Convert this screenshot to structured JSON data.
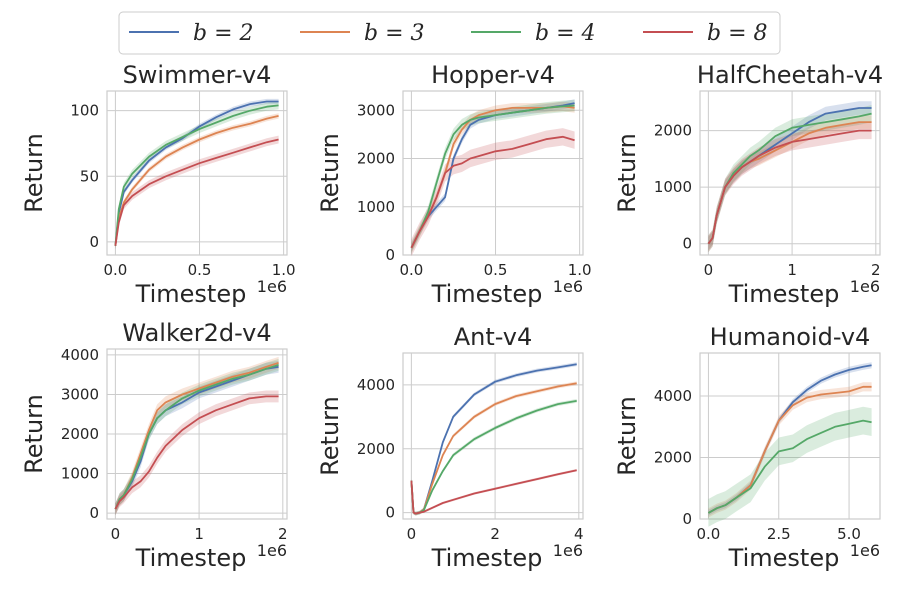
{
  "colors": {
    "b = 2": "#4c72b0",
    "b = 3": "#dd8452",
    "b = 4": "#55a868",
    "b = 8": "#c44e52"
  },
  "legend": {
    "placement": "top-center",
    "entries": [
      "b = 2",
      "b = 3",
      "b = 4",
      "b = 8"
    ]
  },
  "chart_data": [
    {
      "type": "line",
      "title": "Swimmer-v4",
      "xlabel": "Timestep",
      "xscale_label": "1e6",
      "ylabel": "Return",
      "grid": true,
      "xlim": [
        -0.05,
        1.02
      ],
      "ylim": [
        -10,
        115
      ],
      "xticks": [
        0.0,
        0.5,
        1.0
      ],
      "xtick_labels": [
        "0.0",
        "0.5",
        "1.0"
      ],
      "yticks": [
        0,
        50,
        100
      ],
      "ytick_labels": [
        "0",
        "50",
        "100"
      ],
      "series": [
        {
          "name": "b = 2",
          "x": [
            0,
            0.02,
            0.05,
            0.1,
            0.2,
            0.3,
            0.4,
            0.5,
            0.6,
            0.7,
            0.8,
            0.9,
            0.97
          ],
          "y": [
            -3,
            22,
            38,
            47,
            62,
            72,
            79,
            88,
            95,
            101,
            105,
            107,
            107
          ],
          "band": 2
        },
        {
          "name": "b = 3",
          "x": [
            0,
            0.02,
            0.05,
            0.1,
            0.2,
            0.3,
            0.4,
            0.5,
            0.6,
            0.7,
            0.8,
            0.9,
            0.97
          ],
          "y": [
            -3,
            18,
            30,
            40,
            55,
            65,
            72,
            78,
            83,
            87,
            90,
            94,
            96
          ],
          "band": 2
        },
        {
          "name": "b = 4",
          "x": [
            0,
            0.02,
            0.05,
            0.1,
            0.2,
            0.3,
            0.4,
            0.5,
            0.6,
            0.7,
            0.8,
            0.9,
            0.97
          ],
          "y": [
            -3,
            25,
            42,
            52,
            65,
            74,
            80,
            86,
            91,
            96,
            100,
            103,
            104
          ],
          "band": 3
        },
        {
          "name": "b = 8",
          "x": [
            0,
            0.02,
            0.05,
            0.1,
            0.2,
            0.3,
            0.4,
            0.5,
            0.6,
            0.7,
            0.8,
            0.9,
            0.97
          ],
          "y": [
            -3,
            15,
            28,
            35,
            44,
            50,
            55,
            60,
            64,
            68,
            72,
            76,
            78
          ],
          "band": 3
        }
      ]
    },
    {
      "type": "line",
      "title": "Hopper-v4",
      "xlabel": "Timestep",
      "xscale_label": "1e6",
      "ylabel": "Return",
      "grid": true,
      "xlim": [
        -0.05,
        1.02
      ],
      "ylim": [
        0,
        3400
      ],
      "xticks": [
        0.0,
        0.5,
        1.0
      ],
      "xtick_labels": [
        "0.0",
        "0.5",
        "1.0"
      ],
      "yticks": [
        0,
        1000,
        2000,
        3000
      ],
      "ytick_labels": [
        "0",
        "1000",
        "2000",
        "3000"
      ],
      "series": [
        {
          "name": "b = 2",
          "x": [
            0,
            0.05,
            0.1,
            0.15,
            0.2,
            0.25,
            0.3,
            0.35,
            0.4,
            0.5,
            0.6,
            0.7,
            0.8,
            0.9,
            0.97
          ],
          "y": [
            150,
            500,
            800,
            1000,
            1200,
            2000,
            2400,
            2700,
            2800,
            2900,
            2950,
            3000,
            3050,
            3100,
            3150
          ],
          "band": 80
        },
        {
          "name": "b = 3",
          "x": [
            0,
            0.05,
            0.1,
            0.15,
            0.2,
            0.25,
            0.3,
            0.35,
            0.4,
            0.5,
            0.6,
            0.7,
            0.8,
            0.9,
            0.97
          ],
          "y": [
            150,
            500,
            800,
            1200,
            1700,
            2300,
            2600,
            2800,
            2900,
            3000,
            3050,
            3050,
            3050,
            3080,
            3050
          ],
          "band": 100
        },
        {
          "name": "b = 4",
          "x": [
            0,
            0.05,
            0.1,
            0.15,
            0.2,
            0.25,
            0.3,
            0.35,
            0.4,
            0.5,
            0.6,
            0.7,
            0.8,
            0.9,
            0.97
          ],
          "y": [
            150,
            500,
            900,
            1500,
            2100,
            2500,
            2700,
            2800,
            2850,
            2900,
            2950,
            3000,
            3050,
            3080,
            3100
          ],
          "band": 120
        },
        {
          "name": "b = 8",
          "x": [
            0,
            0.05,
            0.1,
            0.15,
            0.2,
            0.25,
            0.3,
            0.35,
            0.4,
            0.5,
            0.6,
            0.7,
            0.8,
            0.9,
            0.97
          ],
          "y": [
            150,
            500,
            800,
            1200,
            1700,
            1850,
            1900,
            2000,
            2050,
            2150,
            2200,
            2300,
            2400,
            2450,
            2380
          ],
          "band": 180
        }
      ]
    },
    {
      "type": "line",
      "title": "HalfCheetah-v4",
      "xlabel": "Timestep",
      "xscale_label": "1e6",
      "ylabel": "Return",
      "grid": true,
      "xlim": [
        -0.1,
        2.05
      ],
      "ylim": [
        -200,
        2700
      ],
      "xticks": [
        0,
        1,
        2
      ],
      "xtick_labels": [
        "0",
        "1",
        "2"
      ],
      "yticks": [
        0,
        1000,
        2000
      ],
      "ytick_labels": [
        "0",
        "1000",
        "2000"
      ],
      "series": [
        {
          "name": "b = 2",
          "x": [
            0,
            0.05,
            0.1,
            0.2,
            0.3,
            0.4,
            0.5,
            0.6,
            0.8,
            1.0,
            1.2,
            1.4,
            1.6,
            1.8,
            1.95
          ],
          "y": [
            0,
            100,
            500,
            1000,
            1200,
            1350,
            1450,
            1550,
            1750,
            1950,
            2150,
            2300,
            2350,
            2400,
            2400
          ],
          "band": 120
        },
        {
          "name": "b = 3",
          "x": [
            0,
            0.05,
            0.1,
            0.2,
            0.3,
            0.4,
            0.5,
            0.6,
            0.8,
            1.0,
            1.2,
            1.4,
            1.6,
            1.8,
            1.95
          ],
          "y": [
            0,
            100,
            500,
            1000,
            1200,
            1350,
            1450,
            1500,
            1650,
            1800,
            1950,
            2050,
            2100,
            2150,
            2150
          ],
          "band": 120
        },
        {
          "name": "b = 4",
          "x": [
            0,
            0.05,
            0.1,
            0.2,
            0.3,
            0.4,
            0.5,
            0.6,
            0.8,
            1.0,
            1.2,
            1.4,
            1.6,
            1.8,
            1.95
          ],
          "y": [
            0,
            100,
            500,
            1000,
            1250,
            1400,
            1550,
            1650,
            1900,
            2050,
            2100,
            2150,
            2200,
            2250,
            2300
          ],
          "band": 150
        },
        {
          "name": "b = 8",
          "x": [
            0,
            0.05,
            0.1,
            0.2,
            0.3,
            0.4,
            0.5,
            0.6,
            0.8,
            1.0,
            1.2,
            1.4,
            1.6,
            1.8,
            1.95
          ],
          "y": [
            0,
            100,
            500,
            1000,
            1200,
            1350,
            1450,
            1550,
            1700,
            1800,
            1850,
            1900,
            1950,
            2000,
            2000
          ],
          "band": 150
        }
      ]
    },
    {
      "type": "line",
      "title": "Walker2d-v4",
      "xlabel": "Timestep",
      "xscale_label": "1e6",
      "ylabel": "Return",
      "grid": true,
      "xlim": [
        -0.1,
        2.05
      ],
      "ylim": [
        -150,
        4150
      ],
      "xticks": [
        0,
        1,
        2
      ],
      "xtick_labels": [
        "0",
        "1",
        "2"
      ],
      "yticks": [
        0,
        1000,
        2000,
        3000,
        4000
      ],
      "ytick_labels": [
        "0",
        "1000",
        "2000",
        "3000",
        "4000"
      ],
      "series": [
        {
          "name": "b = 2",
          "x": [
            0,
            0.05,
            0.1,
            0.2,
            0.3,
            0.4,
            0.5,
            0.6,
            0.8,
            1.0,
            1.2,
            1.4,
            1.6,
            1.8,
            1.95
          ],
          "y": [
            100,
            350,
            450,
            800,
            1300,
            2000,
            2400,
            2600,
            2800,
            3050,
            3200,
            3350,
            3500,
            3650,
            3700
          ],
          "band": 150
        },
        {
          "name": "b = 3",
          "x": [
            0,
            0.05,
            0.1,
            0.2,
            0.3,
            0.4,
            0.5,
            0.6,
            0.8,
            1.0,
            1.2,
            1.4,
            1.6,
            1.8,
            1.95
          ],
          "y": [
            100,
            350,
            450,
            900,
            1500,
            2100,
            2600,
            2800,
            3000,
            3150,
            3300,
            3450,
            3550,
            3700,
            3800
          ],
          "band": 150
        },
        {
          "name": "b = 4",
          "x": [
            0,
            0.05,
            0.1,
            0.2,
            0.3,
            0.4,
            0.5,
            0.6,
            0.8,
            1.0,
            1.2,
            1.4,
            1.6,
            1.8,
            1.95
          ],
          "y": [
            100,
            350,
            450,
            850,
            1400,
            2000,
            2400,
            2600,
            2900,
            3100,
            3250,
            3400,
            3500,
            3650,
            3750
          ],
          "band": 150
        },
        {
          "name": "b = 8",
          "x": [
            0,
            0.05,
            0.1,
            0.2,
            0.3,
            0.4,
            0.5,
            0.6,
            0.8,
            1.0,
            1.2,
            1.4,
            1.6,
            1.8,
            1.95
          ],
          "y": [
            100,
            300,
            400,
            650,
            800,
            1050,
            1400,
            1700,
            2100,
            2400,
            2600,
            2750,
            2900,
            2950,
            2950
          ],
          "band": 150
        }
      ]
    },
    {
      "type": "line",
      "title": "Ant-v4",
      "xlabel": "Timestep",
      "xscale_label": "1e6",
      "ylabel": "Return",
      "grid": true,
      "xlim": [
        -0.2,
        4.1
      ],
      "ylim": [
        -200,
        5000
      ],
      "xticks": [
        0,
        2,
        4
      ],
      "xtick_labels": [
        "0",
        "2",
        "4"
      ],
      "yticks": [
        0,
        2000,
        4000
      ],
      "ytick_labels": [
        "0",
        "2000",
        "4000"
      ],
      "series": [
        {
          "name": "b = 2",
          "x": [
            0,
            0.05,
            0.1,
            0.2,
            0.3,
            0.5,
            0.75,
            1.0,
            1.5,
            2.0,
            2.5,
            3.0,
            3.5,
            3.95
          ],
          "y": [
            1000,
            0,
            -30,
            0,
            100,
            1000,
            2200,
            3000,
            3700,
            4100,
            4300,
            4450,
            4550,
            4650
          ],
          "band": 60
        },
        {
          "name": "b = 3",
          "x": [
            0,
            0.05,
            0.1,
            0.2,
            0.3,
            0.5,
            0.75,
            1.0,
            1.5,
            2.0,
            2.5,
            3.0,
            3.5,
            3.95
          ],
          "y": [
            1000,
            0,
            -30,
            0,
            100,
            900,
            1800,
            2400,
            3000,
            3400,
            3650,
            3800,
            3950,
            4050
          ],
          "band": 60
        },
        {
          "name": "b = 4",
          "x": [
            0,
            0.05,
            0.1,
            0.2,
            0.3,
            0.5,
            0.75,
            1.0,
            1.5,
            2.0,
            2.5,
            3.0,
            3.5,
            3.95
          ],
          "y": [
            1000,
            0,
            -30,
            0,
            80,
            700,
            1300,
            1800,
            2300,
            2650,
            2950,
            3200,
            3400,
            3500
          ],
          "band": 60
        },
        {
          "name": "b = 8",
          "x": [
            0,
            0.05,
            0.1,
            0.2,
            0.3,
            0.5,
            0.75,
            1.0,
            1.5,
            2.0,
            2.5,
            3.0,
            3.5,
            3.95
          ],
          "y": [
            1000,
            0,
            -30,
            0,
            30,
            150,
            300,
            400,
            600,
            750,
            900,
            1050,
            1200,
            1330
          ],
          "band": 40
        }
      ]
    },
    {
      "type": "line",
      "title": "Humanoid-v4",
      "xlabel": "Timestep",
      "xscale_label": "1e6",
      "ylabel": "Return",
      "grid": true,
      "xlim": [
        -0.3,
        6.1
      ],
      "ylim": [
        0,
        5400
      ],
      "xticks": [
        0.0,
        2.5,
        5.0
      ],
      "xtick_labels": [
        "0.0",
        "2.5",
        "5.0"
      ],
      "yticks": [
        0,
        2000,
        4000
      ],
      "ytick_labels": [
        "0",
        "2000",
        "4000"
      ],
      "series": [
        {
          "name": "b = 2",
          "x": [
            0,
            0.3,
            0.6,
            1.0,
            1.5,
            2.0,
            2.5,
            3.0,
            3.5,
            4.0,
            4.5,
            5.0,
            5.5,
            5.8
          ],
          "y": [
            200,
            350,
            450,
            700,
            1100,
            2200,
            3200,
            3800,
            4200,
            4500,
            4700,
            4850,
            4950,
            5000
          ],
          "band": 100
        },
        {
          "name": "b = 3",
          "x": [
            0,
            0.3,
            0.6,
            1.0,
            1.5,
            2.0,
            2.5,
            3.0,
            3.5,
            4.0,
            4.5,
            5.0,
            5.5,
            5.8
          ],
          "y": [
            200,
            350,
            450,
            700,
            1100,
            2200,
            3200,
            3700,
            3950,
            4050,
            4100,
            4150,
            4300,
            4300
          ],
          "band": 150
        },
        {
          "name": "b = 4",
          "x": [
            0,
            0.3,
            0.6,
            1.0,
            1.5,
            2.0,
            2.5,
            3.0,
            3.5,
            4.0,
            4.5,
            5.0,
            5.5,
            5.8
          ],
          "y": [
            200,
            350,
            450,
            700,
            1000,
            1700,
            2200,
            2300,
            2600,
            2800,
            3000,
            3100,
            3200,
            3150
          ],
          "band": 450
        }
      ]
    }
  ]
}
